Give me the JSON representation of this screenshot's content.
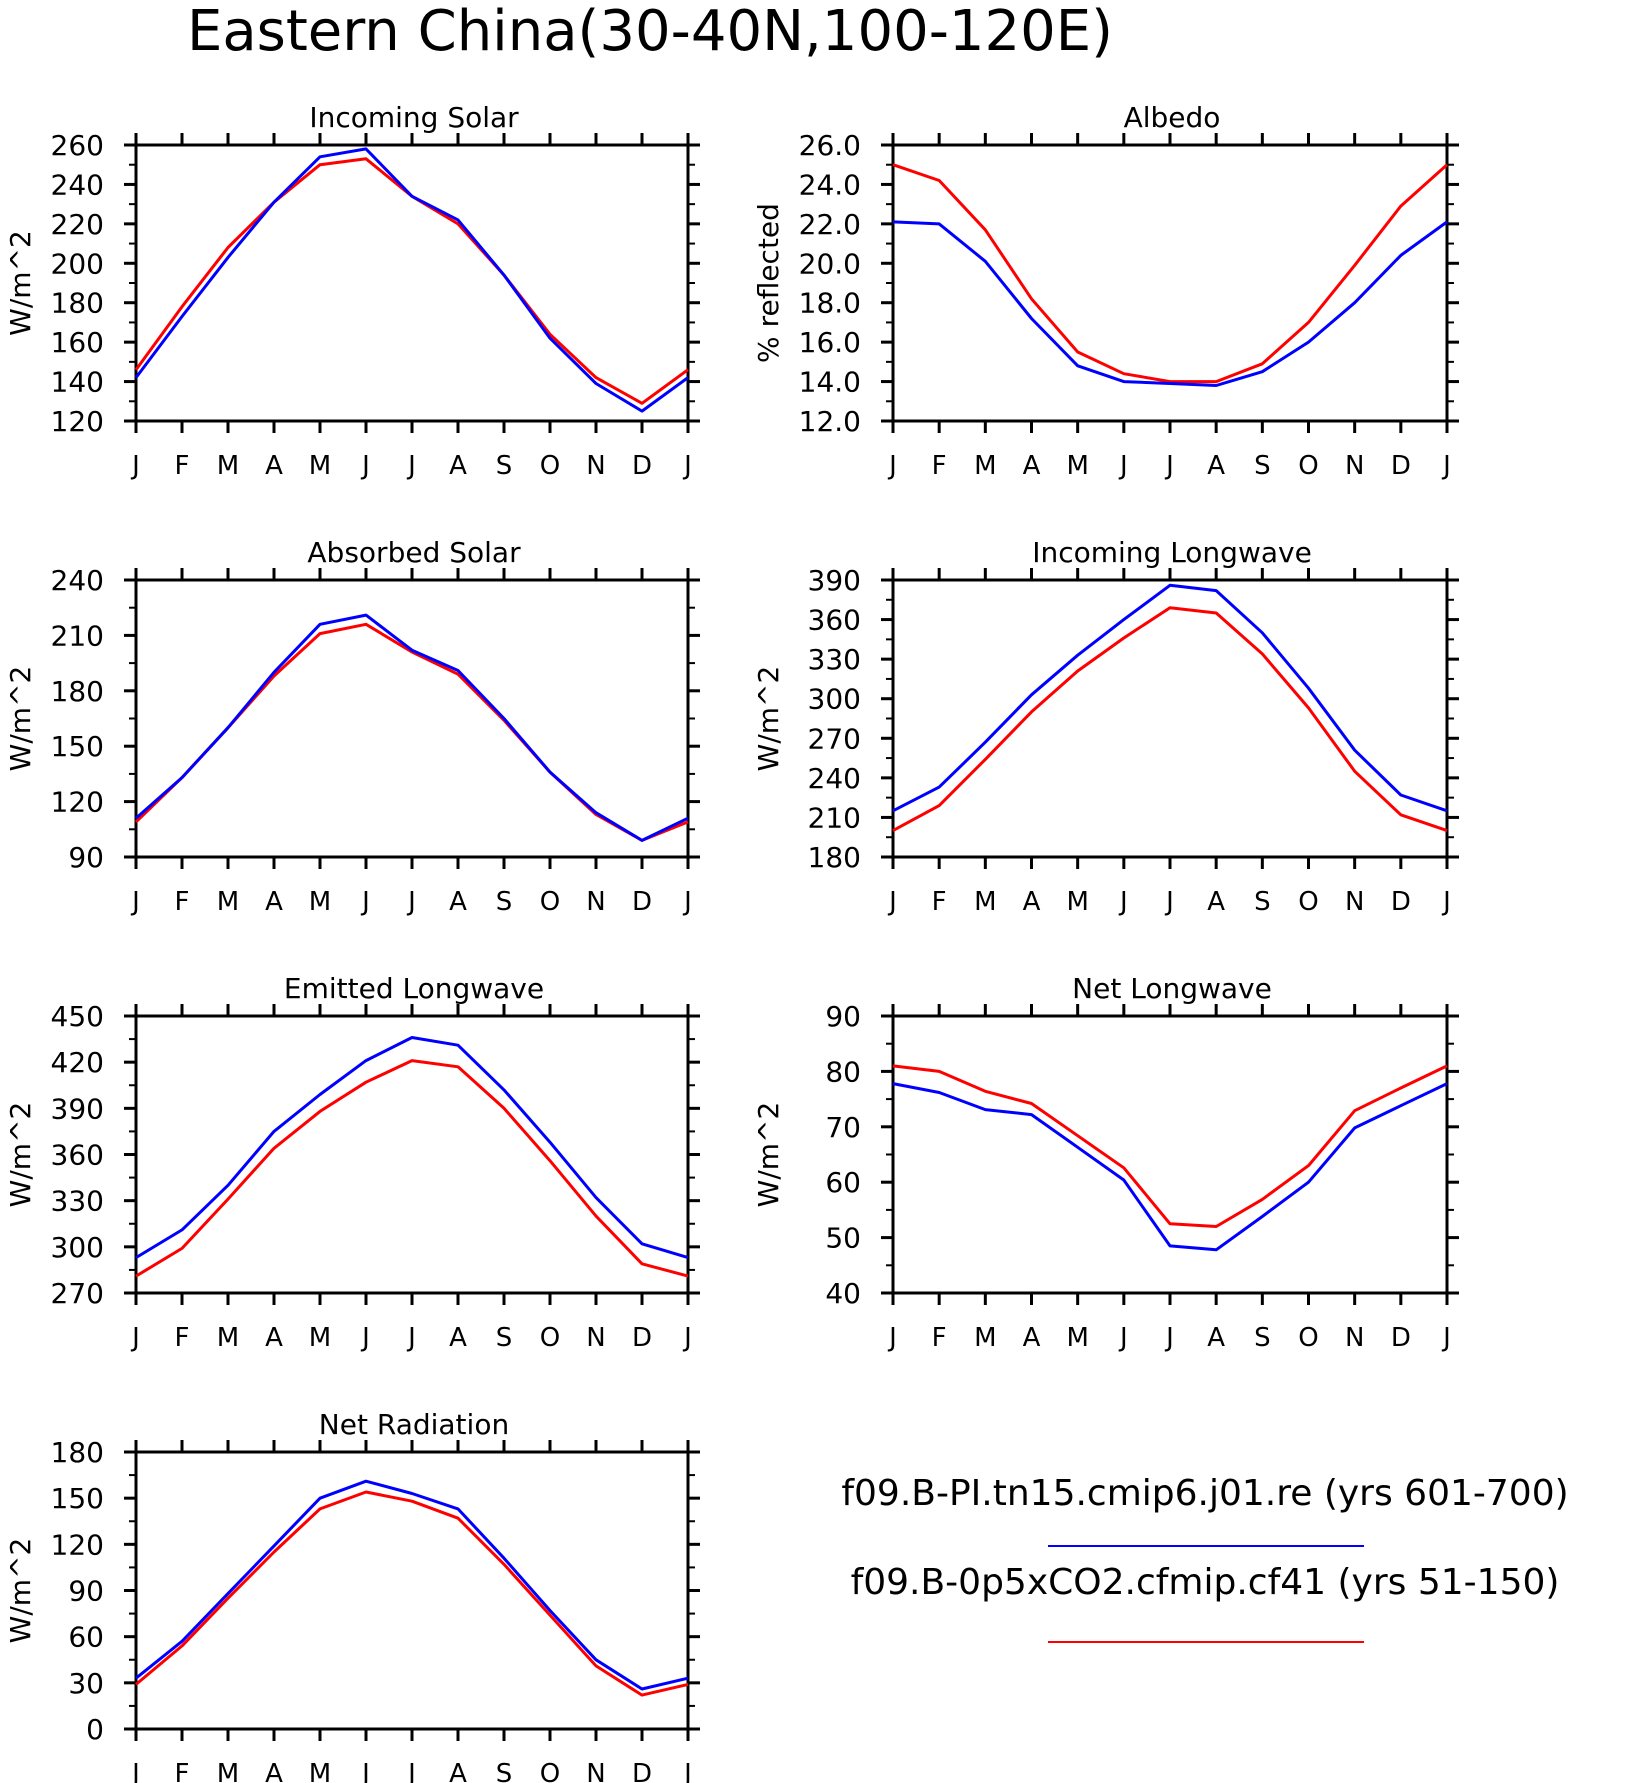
{
  "title": "Eastern China(30-40N,100-120E)",
  "colors": {
    "series_1": "#0000ff",
    "series_2": "#ff0000",
    "axis": "#000000"
  },
  "legend": {
    "entries": [
      {
        "label": "f09.B-PI.tn15.cmip6.j01.re (yrs 601-700)",
        "color": "#0000ff"
      },
      {
        "label": "f09.B-0p5xCO2.cfmip.cf41 (yrs 51-150)",
        "color": "#ff0000"
      }
    ]
  },
  "chart_data": [
    {
      "type": "line",
      "title": "Incoming Solar",
      "ylabel": "W/m^2",
      "categories": [
        "J",
        "F",
        "M",
        "A",
        "M",
        "J",
        "J",
        "A",
        "S",
        "O",
        "N",
        "D",
        "J"
      ],
      "ylim": [
        120,
        260
      ],
      "yticks": [
        "120",
        "140",
        "160",
        "180",
        "200",
        "220",
        "240",
        "260"
      ],
      "series": [
        {
          "color": "#0000ff",
          "values": [
            142,
            173,
            203,
            231,
            254,
            258,
            234,
            222,
            194,
            162,
            139,
            125,
            142
          ]
        },
        {
          "color": "#ff0000",
          "values": [
            146,
            178,
            208,
            231,
            250,
            253,
            234,
            220,
            194,
            164,
            142,
            129,
            146
          ]
        }
      ]
    },
    {
      "type": "line",
      "title": "Albedo",
      "ylabel": "% reflected",
      "categories": [
        "J",
        "F",
        "M",
        "A",
        "M",
        "J",
        "J",
        "A",
        "S",
        "O",
        "N",
        "D",
        "J"
      ],
      "ylim": [
        12,
        26
      ],
      "yticks": [
        "12.0",
        "14.0",
        "16.0",
        "18.0",
        "20.0",
        "22.0",
        "24.0",
        "26.0"
      ],
      "series": [
        {
          "color": "#0000ff",
          "values": [
            22.1,
            22.0,
            20.1,
            17.2,
            14.8,
            14.0,
            13.9,
            13.8,
            14.5,
            16.0,
            18.0,
            20.4,
            22.1
          ]
        },
        {
          "color": "#ff0000",
          "values": [
            25.0,
            24.2,
            21.7,
            18.2,
            15.5,
            14.4,
            14.0,
            14.0,
            14.9,
            17.0,
            19.9,
            22.9,
            25.0
          ]
        }
      ]
    },
    {
      "type": "line",
      "title": "Absorbed Solar",
      "ylabel": "W/m^2",
      "categories": [
        "J",
        "F",
        "M",
        "A",
        "M",
        "J",
        "J",
        "A",
        "S",
        "O",
        "N",
        "D",
        "J"
      ],
      "ylim": [
        90,
        240
      ],
      "yticks": [
        "90",
        "120",
        "150",
        "180",
        "210",
        "240"
      ],
      "series": [
        {
          "color": "#0000ff",
          "values": [
            111,
            133,
            160,
            190,
            216,
            221,
            202,
            191,
            165,
            136,
            114,
            99,
            111
          ]
        },
        {
          "color": "#ff0000",
          "values": [
            109,
            133,
            160,
            188,
            211,
            216,
            201,
            189,
            164,
            136,
            113,
            99,
            109
          ]
        }
      ]
    },
    {
      "type": "line",
      "title": "Incoming Longwave",
      "ylabel": "W/m^2",
      "categories": [
        "J",
        "F",
        "M",
        "A",
        "M",
        "J",
        "J",
        "A",
        "S",
        "O",
        "N",
        "D",
        "J"
      ],
      "ylim": [
        180,
        390
      ],
      "yticks": [
        "180",
        "210",
        "240",
        "270",
        "300",
        "330",
        "360",
        "390"
      ],
      "series": [
        {
          "color": "#0000ff",
          "values": [
            215,
            233,
            267,
            303,
            333,
            360,
            386,
            382,
            350,
            308,
            261,
            227,
            215
          ]
        },
        {
          "color": "#ff0000",
          "values": [
            200,
            219,
            254,
            290,
            321,
            346,
            369,
            365,
            334,
            293,
            245,
            212,
            200
          ]
        }
      ]
    },
    {
      "type": "line",
      "title": "Emitted Longwave",
      "ylabel": "W/m^2",
      "categories": [
        "J",
        "F",
        "M",
        "A",
        "M",
        "J",
        "J",
        "A",
        "S",
        "O",
        "N",
        "D",
        "J"
      ],
      "ylim": [
        270,
        450
      ],
      "yticks": [
        "270",
        "300",
        "330",
        "360",
        "390",
        "420",
        "450"
      ],
      "series": [
        {
          "color": "#0000ff",
          "values": [
            293,
            311,
            340,
            375,
            399,
            421,
            436,
            431,
            402,
            368,
            332,
            302,
            293
          ]
        },
        {
          "color": "#ff0000",
          "values": [
            281,
            299,
            331,
            364,
            388,
            407,
            421,
            417,
            390,
            356,
            320,
            289,
            281
          ]
        }
      ]
    },
    {
      "type": "line",
      "title": "Net Longwave",
      "ylabel": "W/m^2",
      "categories": [
        "J",
        "F",
        "M",
        "A",
        "M",
        "J",
        "J",
        "A",
        "S",
        "O",
        "N",
        "D",
        "J"
      ],
      "ylim": [
        40,
        90
      ],
      "yticks": [
        "40",
        "50",
        "60",
        "70",
        "80",
        "90"
      ],
      "series": [
        {
          "color": "#0000ff",
          "values": [
            77.8,
            76.2,
            73.1,
            72.2,
            66.3,
            60.4,
            48.5,
            47.8,
            53.8,
            60.0,
            69.8,
            73.8,
            77.8
          ]
        },
        {
          "color": "#ff0000",
          "values": [
            81.0,
            80.0,
            76.4,
            74.2,
            68.4,
            62.6,
            52.5,
            52.0,
            56.9,
            63.0,
            72.9,
            77.0,
            81.0
          ]
        }
      ]
    },
    {
      "type": "line",
      "title": "Net Radiation",
      "ylabel": "W/m^2",
      "categories": [
        "J",
        "F",
        "M",
        "A",
        "M",
        "J",
        "J",
        "A",
        "S",
        "O",
        "N",
        "D",
        "J"
      ],
      "ylim": [
        0,
        180
      ],
      "yticks": [
        "0",
        "30",
        "60",
        "90",
        "120",
        "150",
        "180"
      ],
      "series": [
        {
          "color": "#0000ff",
          "values": [
            33,
            57,
            88,
            119,
            150,
            161,
            153,
            143,
            111,
            77,
            45,
            26,
            33
          ]
        },
        {
          "color": "#ff0000",
          "values": [
            29,
            54,
            85,
            115,
            143,
            154,
            148,
            137,
            107,
            74,
            41,
            22,
            29
          ]
        }
      ]
    }
  ]
}
